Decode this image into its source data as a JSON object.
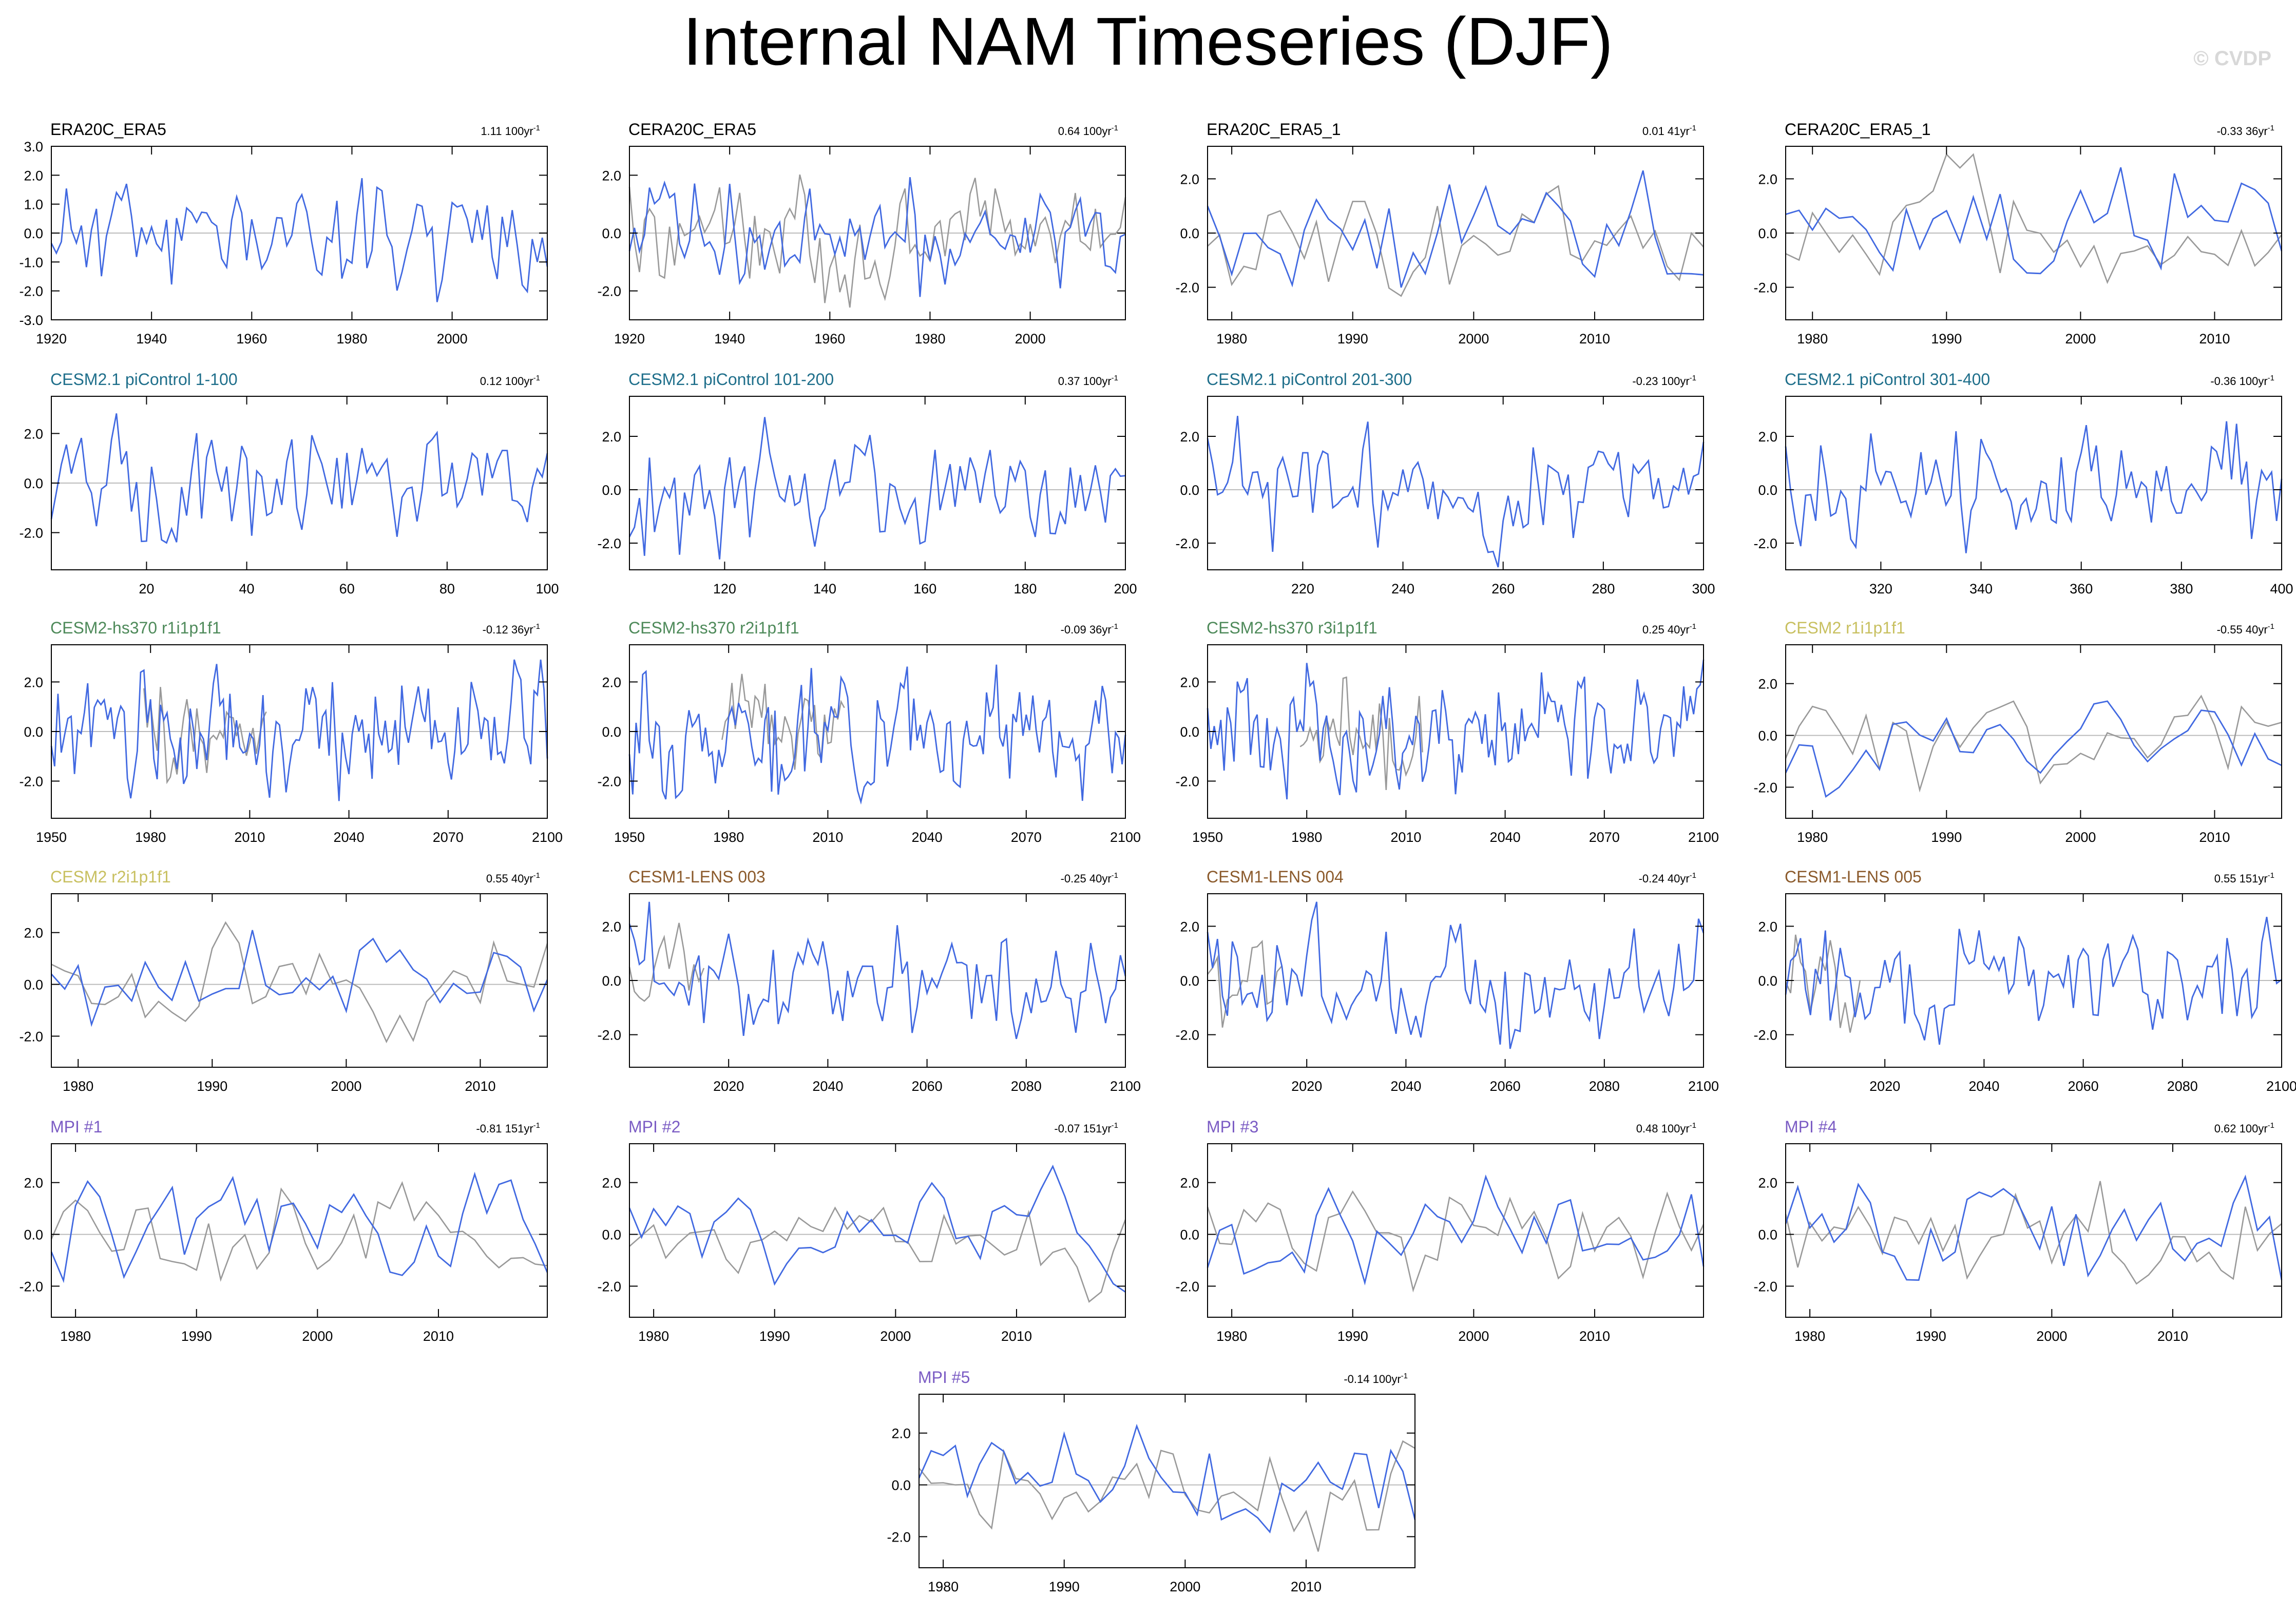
{
  "title": "Internal NAM Timeseries (DJF)",
  "credit": "© CVDP",
  "colors": {
    "model": "#4169e1",
    "obs": "#999999",
    "zero": "#bbbbbb",
    "axis": "#000000"
  },
  "chart_data": [
    {
      "type": "line",
      "title": "ERA20C_ERA5",
      "title_color": "#000000",
      "trend": "1.11",
      "trend_unit": "100yr",
      "xlim": [
        1920,
        2019
      ],
      "ylim": [
        -3,
        3
      ],
      "xticks": [
        1920,
        1940,
        1960,
        1980,
        2000
      ],
      "yticks": [
        -3,
        -2,
        -1,
        0,
        1,
        2,
        3
      ],
      "ytick_labels": [
        "-3.0",
        "-2.0",
        "-1.0",
        "0.0",
        "1.0",
        "2.0",
        "3.0"
      ],
      "has_obs": false,
      "seed": 11,
      "amp": 0.9
    },
    {
      "type": "line",
      "title": "CERA20C_ERA5",
      "title_color": "#000000",
      "trend": "0.64",
      "trend_unit": "100yr",
      "xlim": [
        1920,
        2019
      ],
      "ylim": [
        -3,
        3
      ],
      "xticks": [
        1920,
        1940,
        1960,
        1980,
        2000
      ],
      "yticks": [
        -2,
        0,
        2
      ],
      "ytick_labels": [
        "-2.0",
        "0.0",
        "2.0"
      ],
      "has_obs": true,
      "seed": 12,
      "amp": 0.9
    },
    {
      "type": "line",
      "title": "ERA20C_ERA5_1",
      "title_color": "#000000",
      "trend": "0.01",
      "trend_unit": "41yr",
      "xlim": [
        1978,
        2019
      ],
      "ylim": [
        -3.2,
        3.2
      ],
      "xticks": [
        1980,
        1990,
        2000,
        2010
      ],
      "yticks": [
        -2,
        0,
        2
      ],
      "ytick_labels": [
        "-2.0",
        "0.0",
        "2.0"
      ],
      "has_obs": true,
      "seed": 13,
      "amp": 1.0
    },
    {
      "type": "line",
      "title": "CERA20C_ERA5_1",
      "title_color": "#000000",
      "trend": "-0.33",
      "trend_unit": "36yr",
      "xlim": [
        1978,
        2015
      ],
      "ylim": [
        -3.2,
        3.2
      ],
      "xticks": [
        1980,
        1990,
        2000,
        2010
      ],
      "yticks": [
        -2,
        0,
        2
      ],
      "ytick_labels": [
        "-2.0",
        "0.0",
        "2.0"
      ],
      "has_obs": true,
      "seed": 14,
      "amp": 1.0
    },
    {
      "type": "line",
      "title": "CESM2.1 piControl 1-100",
      "title_color": "#1f6f8b",
      "trend": "0.12",
      "trend_unit": "100yr",
      "xlim": [
        1,
        100
      ],
      "ylim": [
        -3.5,
        3.5
      ],
      "xticks": [
        20,
        40,
        60,
        80,
        100
      ],
      "yticks": [
        -2,
        0,
        2
      ],
      "ytick_labels": [
        "-2.0",
        "0.0",
        "2.0"
      ],
      "has_obs": false,
      "seed": 21,
      "amp": 1.0
    },
    {
      "type": "line",
      "title": "CESM2.1 piControl 101-200",
      "title_color": "#1f6f8b",
      "trend": "0.37",
      "trend_unit": "100yr",
      "xlim": [
        101,
        200
      ],
      "ylim": [
        -3,
        3.5
      ],
      "xticks": [
        120,
        140,
        160,
        180,
        200
      ],
      "yticks": [
        -2,
        0,
        2
      ],
      "ytick_labels": [
        "-2.0",
        "0.0",
        "2.0"
      ],
      "has_obs": false,
      "seed": 22,
      "amp": 1.0
    },
    {
      "type": "line",
      "title": "CESM2.1 piControl 201-300",
      "title_color": "#1f6f8b",
      "trend": "-0.23",
      "trend_unit": "100yr",
      "xlim": [
        201,
        300
      ],
      "ylim": [
        -3,
        3.5
      ],
      "xticks": [
        220,
        240,
        260,
        280,
        300
      ],
      "yticks": [
        -2,
        0,
        2
      ],
      "ytick_labels": [
        "-2.0",
        "0.0",
        "2.0"
      ],
      "has_obs": false,
      "seed": 23,
      "amp": 1.0
    },
    {
      "type": "line",
      "title": "CESM2.1 piControl 301-400",
      "title_color": "#1f6f8b",
      "trend": "-0.36",
      "trend_unit": "100yr",
      "xlim": [
        301,
        400
      ],
      "ylim": [
        -3,
        3.5
      ],
      "xticks": [
        320,
        340,
        360,
        380,
        400
      ],
      "yticks": [
        -2,
        0,
        2
      ],
      "ytick_labels": [
        "-2.0",
        "0.0",
        "2.0"
      ],
      "has_obs": false,
      "seed": 24,
      "amp": 1.0
    },
    {
      "type": "line",
      "title": "CESM2-hs370 r1i1p1f1",
      "title_color": "#4e8a5a",
      "trend": "-0.12",
      "trend_unit": "36yr",
      "xlim": [
        1950,
        2100
      ],
      "ylim": [
        -3.5,
        3.5
      ],
      "xticks": [
        1950,
        1980,
        2010,
        2040,
        2070,
        2100
      ],
      "yticks": [
        -2,
        0,
        2
      ],
      "ytick_labels": [
        "-2.0",
        "0.0",
        "2.0"
      ],
      "has_obs": true,
      "obs_range": [
        1978,
        2015
      ],
      "seed": 31,
      "amp": 1.1
    },
    {
      "type": "line",
      "title": "CESM2-hs370 r2i1p1f1",
      "title_color": "#4e8a5a",
      "trend": "-0.09",
      "trend_unit": "36yr",
      "xlim": [
        1950,
        2100
      ],
      "ylim": [
        -3.5,
        3.5
      ],
      "xticks": [
        1950,
        1980,
        2010,
        2040,
        2070,
        2100
      ],
      "yticks": [
        -2,
        0,
        2
      ],
      "ytick_labels": [
        "-2.0",
        "0.0",
        "2.0"
      ],
      "has_obs": true,
      "obs_range": [
        1978,
        2015
      ],
      "seed": 32,
      "amp": 1.1
    },
    {
      "type": "line",
      "title": "CESM2-hs370 r3i1p1f1",
      "title_color": "#4e8a5a",
      "trend": "0.25",
      "trend_unit": "40yr",
      "xlim": [
        1950,
        2100
      ],
      "ylim": [
        -3.5,
        3.5
      ],
      "xticks": [
        1950,
        1980,
        2010,
        2040,
        2070,
        2100
      ],
      "yticks": [
        -2,
        0,
        2
      ],
      "ytick_labels": [
        "-2.0",
        "0.0",
        "2.0"
      ],
      "has_obs": true,
      "obs_range": [
        1978,
        2015
      ],
      "seed": 33,
      "amp": 1.1
    },
    {
      "type": "line",
      "title": "CESM2 r1i1p1f1",
      "title_color": "#c8c060",
      "trend": "-0.55",
      "trend_unit": "40yr",
      "xlim": [
        1978,
        2015
      ],
      "ylim": [
        -3.2,
        3.5
      ],
      "xticks": [
        1980,
        1990,
        2000,
        2010
      ],
      "yticks": [
        -2,
        0,
        2
      ],
      "ytick_labels": [
        "-2.0",
        "0.0",
        "2.0"
      ],
      "has_obs": true,
      "seed": 34,
      "amp": 1.0
    },
    {
      "type": "line",
      "title": "CESM2 r2i1p1f1",
      "title_color": "#c8c060",
      "trend": "0.55",
      "trend_unit": "40yr",
      "xlim": [
        1978,
        2015
      ],
      "ylim": [
        -3.2,
        3.5
      ],
      "xticks": [
        1980,
        1990,
        2000,
        2010
      ],
      "yticks": [
        -2,
        0,
        2
      ],
      "ytick_labels": [
        "-2.0",
        "0.0",
        "2.0"
      ],
      "has_obs": true,
      "seed": 41,
      "amp": 1.0
    },
    {
      "type": "line",
      "title": "CESM1-LENS 003",
      "title_color": "#8b5a2b",
      "trend": "-0.25",
      "trend_unit": "40yr",
      "xlim": [
        2000,
        2100
      ],
      "ylim": [
        -3.2,
        3.2
      ],
      "xticks": [
        2020,
        2040,
        2060,
        2080,
        2100
      ],
      "yticks": [
        -2,
        0,
        2
      ],
      "ytick_labels": [
        "-2.0",
        "0.0",
        "2.0"
      ],
      "has_obs": true,
      "obs_range": [
        2000,
        2015
      ],
      "seed": 42,
      "amp": 1.0
    },
    {
      "type": "line",
      "title": "CESM1-LENS 004",
      "title_color": "#8b5a2b",
      "trend": "-0.24",
      "trend_unit": "40yr",
      "xlim": [
        2000,
        2100
      ],
      "ylim": [
        -3.2,
        3.2
      ],
      "xticks": [
        2020,
        2040,
        2060,
        2080,
        2100
      ],
      "yticks": [
        -2,
        0,
        2
      ],
      "ytick_labels": [
        "-2.0",
        "0.0",
        "2.0"
      ],
      "has_obs": true,
      "obs_range": [
        2000,
        2015
      ],
      "seed": 43,
      "amp": 1.0
    },
    {
      "type": "line",
      "title": "CESM1-LENS 005",
      "title_color": "#8b5a2b",
      "trend": "0.55",
      "trend_unit": "151yr",
      "xlim": [
        2000,
        2100
      ],
      "ylim": [
        -3.2,
        3.2
      ],
      "xticks": [
        2020,
        2040,
        2060,
        2080,
        2100
      ],
      "yticks": [
        -2,
        0,
        2
      ],
      "ytick_labels": [
        "-2.0",
        "0.0",
        "2.0"
      ],
      "has_obs": true,
      "obs_range": [
        2000,
        2015
      ],
      "seed": 44,
      "amp": 1.0
    },
    {
      "type": "line",
      "title": "MPI #1",
      "title_color": "#7b5cc4",
      "trend": "-0.81",
      "trend_unit": "151yr",
      "xlim": [
        1978,
        2019
      ],
      "ylim": [
        -3.2,
        3.5
      ],
      "xticks": [
        1980,
        1990,
        2000,
        2010
      ],
      "yticks": [
        -2,
        0,
        2
      ],
      "ytick_labels": [
        "-2.0",
        "0.0",
        "2.0"
      ],
      "has_obs": true,
      "seed": 51,
      "amp": 1.0
    },
    {
      "type": "line",
      "title": "MPI #2",
      "title_color": "#7b5cc4",
      "trend": "-0.07",
      "trend_unit": "151yr",
      "xlim": [
        1978,
        2019
      ],
      "ylim": [
        -3.2,
        3.5
      ],
      "xticks": [
        1980,
        1990,
        2000,
        2010
      ],
      "yticks": [
        -2,
        0,
        2
      ],
      "ytick_labels": [
        "-2.0",
        "0.0",
        "2.0"
      ],
      "has_obs": true,
      "seed": 52,
      "amp": 1.0
    },
    {
      "type": "line",
      "title": "MPI #3",
      "title_color": "#7b5cc4",
      "trend": "0.48",
      "trend_unit": "100yr",
      "xlim": [
        1978,
        2019
      ],
      "ylim": [
        -3.2,
        3.5
      ],
      "xticks": [
        1980,
        1990,
        2000,
        2010
      ],
      "yticks": [
        -2,
        0,
        2
      ],
      "ytick_labels": [
        "-2.0",
        "0.0",
        "2.0"
      ],
      "has_obs": true,
      "seed": 53,
      "amp": 1.0
    },
    {
      "type": "line",
      "title": "MPI #4",
      "title_color": "#7b5cc4",
      "trend": "0.62",
      "trend_unit": "100yr",
      "xlim": [
        1978,
        2019
      ],
      "ylim": [
        -3.2,
        3.5
      ],
      "xticks": [
        1980,
        1990,
        2000,
        2010
      ],
      "yticks": [
        -2,
        0,
        2
      ],
      "ytick_labels": [
        "-2.0",
        "0.0",
        "2.0"
      ],
      "has_obs": true,
      "seed": 54,
      "amp": 1.0
    },
    {
      "type": "line",
      "title": "MPI #5",
      "title_color": "#7b5cc4",
      "trend": "-0.14",
      "trend_unit": "100yr",
      "xlim": [
        1978,
        2019
      ],
      "ylim": [
        -3.2,
        3.5
      ],
      "xticks": [
        1980,
        1990,
        2000,
        2010
      ],
      "yticks": [
        -2,
        0,
        2
      ],
      "ytick_labels": [
        "-2.0",
        "0.0",
        "2.0"
      ],
      "has_obs": true,
      "seed": 61,
      "amp": 1.0
    }
  ]
}
